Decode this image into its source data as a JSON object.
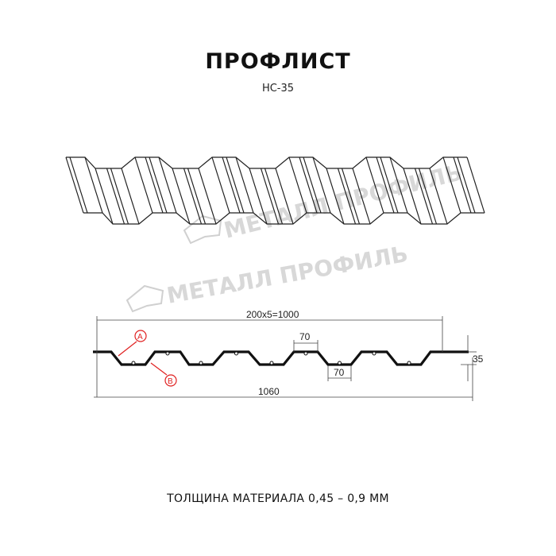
{
  "header": {
    "title": "ПРОФЛИСТ",
    "subtitle": "НС-35"
  },
  "watermark": {
    "text": "МЕТАЛЛ ПРОФИЛЬ"
  },
  "drawing": {
    "dim_pitch": "200x5=1000",
    "dim_top_width": "70",
    "dim_bottom_width": "70",
    "dim_height": "35",
    "dim_total": "1060",
    "marker_a": "A",
    "marker_b": "B",
    "marker_color": "#e02020"
  },
  "footer": {
    "text": "ТОЛЩИНА МАТЕРИАЛА 0,45 – 0,9 ММ"
  }
}
